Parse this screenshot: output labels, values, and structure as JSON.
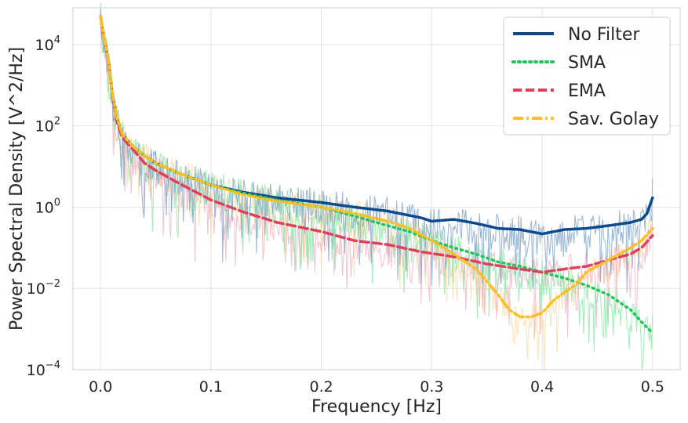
{
  "chart_data": {
    "type": "line",
    "title": "",
    "xlabel": "Frequency [Hz]",
    "ylabel": "Power Spectral Density [V^2/Hz]",
    "xlim": [
      -0.025,
      0.525
    ],
    "ylim": [
      0.0001,
      80000
    ],
    "yscale": "log",
    "grid": true,
    "legend_position": "top-right",
    "x_ticks": [
      {
        "value": 0.0,
        "label": "0.0"
      },
      {
        "value": 0.1,
        "label": "0.1"
      },
      {
        "value": 0.2,
        "label": "0.2"
      },
      {
        "value": 0.3,
        "label": "0.3"
      },
      {
        "value": 0.4,
        "label": "0.4"
      },
      {
        "value": 0.5,
        "label": "0.5"
      }
    ],
    "y_ticks": [
      {
        "value": 0.0001,
        "base": "10",
        "exp": "−4"
      },
      {
        "value": 0.01,
        "base": "10",
        "exp": "−2"
      },
      {
        "value": 1,
        "base": "10",
        "exp": "0"
      },
      {
        "value": 100,
        "base": "10",
        "exp": "2"
      },
      {
        "value": 10000,
        "base": "10",
        "exp": "4"
      }
    ],
    "series": [
      {
        "name": "No Filter",
        "color": "#0c4a8c",
        "dash": "solid",
        "raw_color": "#7ea2c8",
        "x": [
          0.0,
          0.002,
          0.005,
          0.008,
          0.01,
          0.015,
          0.02,
          0.03,
          0.04,
          0.05,
          0.07,
          0.1,
          0.13,
          0.16,
          0.2,
          0.23,
          0.26,
          0.29,
          0.3,
          0.32,
          0.34,
          0.36,
          0.38,
          0.4,
          0.42,
          0.44,
          0.46,
          0.48,
          0.49,
          0.495,
          0.5
        ],
        "y": [
          50000,
          20000,
          8000,
          3000,
          800,
          150,
          60,
          30,
          18,
          12,
          7,
          3.5,
          2.3,
          1.7,
          1.3,
          1.0,
          0.8,
          0.55,
          0.45,
          0.5,
          0.4,
          0.3,
          0.28,
          0.22,
          0.28,
          0.3,
          0.35,
          0.42,
          0.5,
          0.7,
          1.7
        ]
      },
      {
        "name": "SMA",
        "color": "#22c55e",
        "dash": "dot",
        "raw_color": "#86e8a6",
        "x": [
          0.0,
          0.002,
          0.005,
          0.008,
          0.01,
          0.015,
          0.02,
          0.03,
          0.04,
          0.05,
          0.07,
          0.1,
          0.13,
          0.16,
          0.2,
          0.23,
          0.26,
          0.28,
          0.3,
          0.32,
          0.34,
          0.36,
          0.38,
          0.4,
          0.42,
          0.44,
          0.46,
          0.48,
          0.49,
          0.5
        ],
        "y": [
          50000,
          20000,
          8000,
          3000,
          800,
          150,
          60,
          30,
          18,
          12,
          7,
          3.5,
          2.2,
          1.5,
          1.0,
          0.6,
          0.35,
          0.25,
          0.15,
          0.1,
          0.07,
          0.045,
          0.035,
          0.025,
          0.018,
          0.012,
          0.007,
          0.003,
          0.0015,
          0.0008
        ]
      },
      {
        "name": "EMA",
        "color": "#e0405a",
        "dash": "dash",
        "raw_color": "#f2b0c0",
        "x": [
          0.0,
          0.002,
          0.005,
          0.008,
          0.01,
          0.015,
          0.02,
          0.03,
          0.04,
          0.05,
          0.07,
          0.1,
          0.13,
          0.16,
          0.2,
          0.23,
          0.26,
          0.29,
          0.32,
          0.35,
          0.38,
          0.4,
          0.42,
          0.44,
          0.46,
          0.48,
          0.49,
          0.5
        ],
        "y": [
          50000,
          20000,
          8000,
          3000,
          800,
          120,
          50,
          25,
          12,
          8,
          4,
          1.5,
          0.75,
          0.42,
          0.25,
          0.15,
          0.12,
          0.08,
          0.06,
          0.04,
          0.03,
          0.025,
          0.03,
          0.035,
          0.05,
          0.07,
          0.1,
          0.2
        ]
      },
      {
        "name": "Sav. Golay",
        "color": "#fbbf24",
        "dash": "dashdot",
        "raw_color": "#fcd9a0",
        "x": [
          0.0,
          0.002,
          0.005,
          0.008,
          0.01,
          0.015,
          0.02,
          0.03,
          0.04,
          0.05,
          0.07,
          0.1,
          0.13,
          0.16,
          0.2,
          0.23,
          0.26,
          0.28,
          0.3,
          0.32,
          0.34,
          0.35,
          0.36,
          0.37,
          0.38,
          0.39,
          0.4,
          0.41,
          0.42,
          0.43,
          0.44,
          0.46,
          0.48,
          0.49,
          0.5
        ],
        "y": [
          50000,
          20000,
          8000,
          3000,
          800,
          150,
          60,
          30,
          18,
          12,
          7,
          3.5,
          2.0,
          1.4,
          1.0,
          0.7,
          0.45,
          0.3,
          0.15,
          0.07,
          0.03,
          0.015,
          0.007,
          0.003,
          0.002,
          0.002,
          0.0025,
          0.005,
          0.008,
          0.012,
          0.025,
          0.05,
          0.1,
          0.15,
          0.3
        ]
      }
    ]
  }
}
